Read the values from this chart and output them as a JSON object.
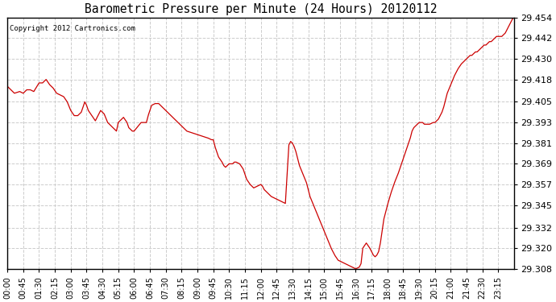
{
  "title": "Barometric Pressure per Minute (24 Hours) 20120112",
  "copyright": "Copyright 2012 Cartronics.com",
  "line_color": "#cc0000",
  "background_color": "#ffffff",
  "grid_color": "#cccccc",
  "ylim": [
    29.308,
    29.454
  ],
  "yticks": [
    29.308,
    29.32,
    29.332,
    29.345,
    29.357,
    29.369,
    29.381,
    29.393,
    29.405,
    29.418,
    29.43,
    29.442,
    29.454
  ],
  "xtick_labels": [
    "00:00",
    "00:45",
    "01:30",
    "02:15",
    "03:00",
    "03:45",
    "04:30",
    "05:15",
    "06:00",
    "06:45",
    "07:30",
    "08:15",
    "09:00",
    "09:45",
    "10:30",
    "11:15",
    "12:00",
    "12:45",
    "13:30",
    "14:15",
    "15:00",
    "15:45",
    "16:30",
    "17:15",
    "18:00",
    "18:45",
    "19:30",
    "20:15",
    "21:00",
    "21:45",
    "22:30",
    "23:15"
  ],
  "key_points": [
    [
      0,
      29.414
    ],
    [
      20,
      29.41
    ],
    [
      35,
      29.411
    ],
    [
      45,
      29.41
    ],
    [
      55,
      29.412
    ],
    [
      65,
      29.412
    ],
    [
      75,
      29.411
    ],
    [
      90,
      29.416
    ],
    [
      100,
      29.416
    ],
    [
      110,
      29.418
    ],
    [
      120,
      29.415
    ],
    [
      130,
      29.413
    ],
    [
      140,
      29.41
    ],
    [
      150,
      29.409
    ],
    [
      160,
      29.408
    ],
    [
      170,
      29.405
    ],
    [
      180,
      29.4
    ],
    [
      190,
      29.397
    ],
    [
      200,
      29.397
    ],
    [
      210,
      29.399
    ],
    [
      215,
      29.402
    ],
    [
      220,
      29.405
    ],
    [
      225,
      29.403
    ],
    [
      230,
      29.4
    ],
    [
      240,
      29.397
    ],
    [
      250,
      29.394
    ],
    [
      255,
      29.396
    ],
    [
      265,
      29.4
    ],
    [
      275,
      29.398
    ],
    [
      285,
      29.393
    ],
    [
      295,
      29.391
    ],
    [
      310,
      29.388
    ],
    [
      315,
      29.393
    ],
    [
      325,
      29.395
    ],
    [
      330,
      29.396
    ],
    [
      340,
      29.393
    ],
    [
      345,
      29.39
    ],
    [
      355,
      29.388
    ],
    [
      360,
      29.388
    ],
    [
      380,
      29.393
    ],
    [
      395,
      29.393
    ],
    [
      400,
      29.397
    ],
    [
      405,
      29.4
    ],
    [
      410,
      29.403
    ],
    [
      420,
      29.404
    ],
    [
      430,
      29.404
    ],
    [
      440,
      29.402
    ],
    [
      450,
      29.4
    ],
    [
      460,
      29.398
    ],
    [
      470,
      29.396
    ],
    [
      480,
      29.394
    ],
    [
      490,
      29.392
    ],
    [
      500,
      29.39
    ],
    [
      510,
      29.388
    ],
    [
      525,
      29.387
    ],
    [
      540,
      29.386
    ],
    [
      555,
      29.385
    ],
    [
      570,
      29.384
    ],
    [
      580,
      29.383
    ],
    [
      585,
      29.383
    ],
    [
      590,
      29.379
    ],
    [
      595,
      29.376
    ],
    [
      600,
      29.373
    ],
    [
      610,
      29.37
    ],
    [
      615,
      29.368
    ],
    [
      620,
      29.367
    ],
    [
      630,
      29.369
    ],
    [
      640,
      29.369
    ],
    [
      645,
      29.37
    ],
    [
      650,
      29.37
    ],
    [
      660,
      29.369
    ],
    [
      670,
      29.366
    ],
    [
      675,
      29.363
    ],
    [
      680,
      29.36
    ],
    [
      690,
      29.357
    ],
    [
      700,
      29.355
    ],
    [
      710,
      29.356
    ],
    [
      720,
      29.357
    ],
    [
      725,
      29.356
    ],
    [
      730,
      29.354
    ],
    [
      740,
      29.352
    ],
    [
      750,
      29.35
    ],
    [
      760,
      29.349
    ],
    [
      770,
      29.348
    ],
    [
      780,
      29.347
    ],
    [
      790,
      29.346
    ],
    [
      800,
      29.38
    ],
    [
      805,
      29.382
    ],
    [
      810,
      29.381
    ],
    [
      815,
      29.379
    ],
    [
      820,
      29.376
    ],
    [
      825,
      29.372
    ],
    [
      830,
      29.368
    ],
    [
      840,
      29.363
    ],
    [
      850,
      29.358
    ],
    [
      855,
      29.354
    ],
    [
      860,
      29.35
    ],
    [
      870,
      29.345
    ],
    [
      880,
      29.34
    ],
    [
      890,
      29.335
    ],
    [
      900,
      29.33
    ],
    [
      910,
      29.325
    ],
    [
      920,
      29.32
    ],
    [
      930,
      29.316
    ],
    [
      940,
      29.313
    ],
    [
      950,
      29.312
    ],
    [
      960,
      29.311
    ],
    [
      970,
      29.31
    ],
    [
      980,
      29.309
    ],
    [
      990,
      29.308
    ],
    [
      1000,
      29.309
    ],
    [
      1005,
      29.311
    ],
    [
      1010,
      29.32
    ],
    [
      1020,
      29.323
    ],
    [
      1030,
      29.32
    ],
    [
      1035,
      29.318
    ],
    [
      1040,
      29.316
    ],
    [
      1045,
      29.315
    ],
    [
      1050,
      29.316
    ],
    [
      1055,
      29.318
    ],
    [
      1060,
      29.323
    ],
    [
      1065,
      29.33
    ],
    [
      1070,
      29.337
    ],
    [
      1080,
      29.345
    ],
    [
      1090,
      29.352
    ],
    [
      1100,
      29.358
    ],
    [
      1110,
      29.363
    ],
    [
      1115,
      29.366
    ],
    [
      1120,
      29.369
    ],
    [
      1125,
      29.372
    ],
    [
      1130,
      29.375
    ],
    [
      1140,
      29.381
    ],
    [
      1145,
      29.384
    ],
    [
      1150,
      29.388
    ],
    [
      1155,
      29.39
    ],
    [
      1160,
      29.391
    ],
    [
      1165,
      29.392
    ],
    [
      1170,
      29.393
    ],
    [
      1175,
      29.393
    ],
    [
      1180,
      29.393
    ],
    [
      1185,
      29.392
    ],
    [
      1190,
      29.392
    ],
    [
      1195,
      29.392
    ],
    [
      1200,
      29.392
    ],
    [
      1210,
      29.393
    ],
    [
      1215,
      29.393
    ],
    [
      1220,
      29.394
    ],
    [
      1225,
      29.395
    ],
    [
      1230,
      29.397
    ],
    [
      1235,
      29.399
    ],
    [
      1240,
      29.402
    ],
    [
      1245,
      29.406
    ],
    [
      1250,
      29.41
    ],
    [
      1260,
      29.415
    ],
    [
      1270,
      29.42
    ],
    [
      1280,
      29.424
    ],
    [
      1290,
      29.427
    ],
    [
      1295,
      29.428
    ],
    [
      1300,
      29.429
    ],
    [
      1305,
      29.43
    ],
    [
      1310,
      29.431
    ],
    [
      1315,
      29.432
    ],
    [
      1320,
      29.432
    ],
    [
      1325,
      29.433
    ],
    [
      1330,
      29.434
    ],
    [
      1335,
      29.434
    ],
    [
      1340,
      29.435
    ],
    [
      1345,
      29.436
    ],
    [
      1350,
      29.437
    ],
    [
      1355,
      29.438
    ],
    [
      1360,
      29.438
    ],
    [
      1365,
      29.439
    ],
    [
      1370,
      29.44
    ],
    [
      1375,
      29.44
    ],
    [
      1380,
      29.441
    ],
    [
      1385,
      29.442
    ],
    [
      1390,
      29.443
    ],
    [
      1395,
      29.443
    ],
    [
      1400,
      29.443
    ],
    [
      1405,
      29.443
    ],
    [
      1410,
      29.444
    ],
    [
      1415,
      29.445
    ],
    [
      1420,
      29.447
    ],
    [
      1425,
      29.449
    ],
    [
      1430,
      29.451
    ],
    [
      1435,
      29.453
    ],
    [
      1439,
      29.454
    ]
  ]
}
